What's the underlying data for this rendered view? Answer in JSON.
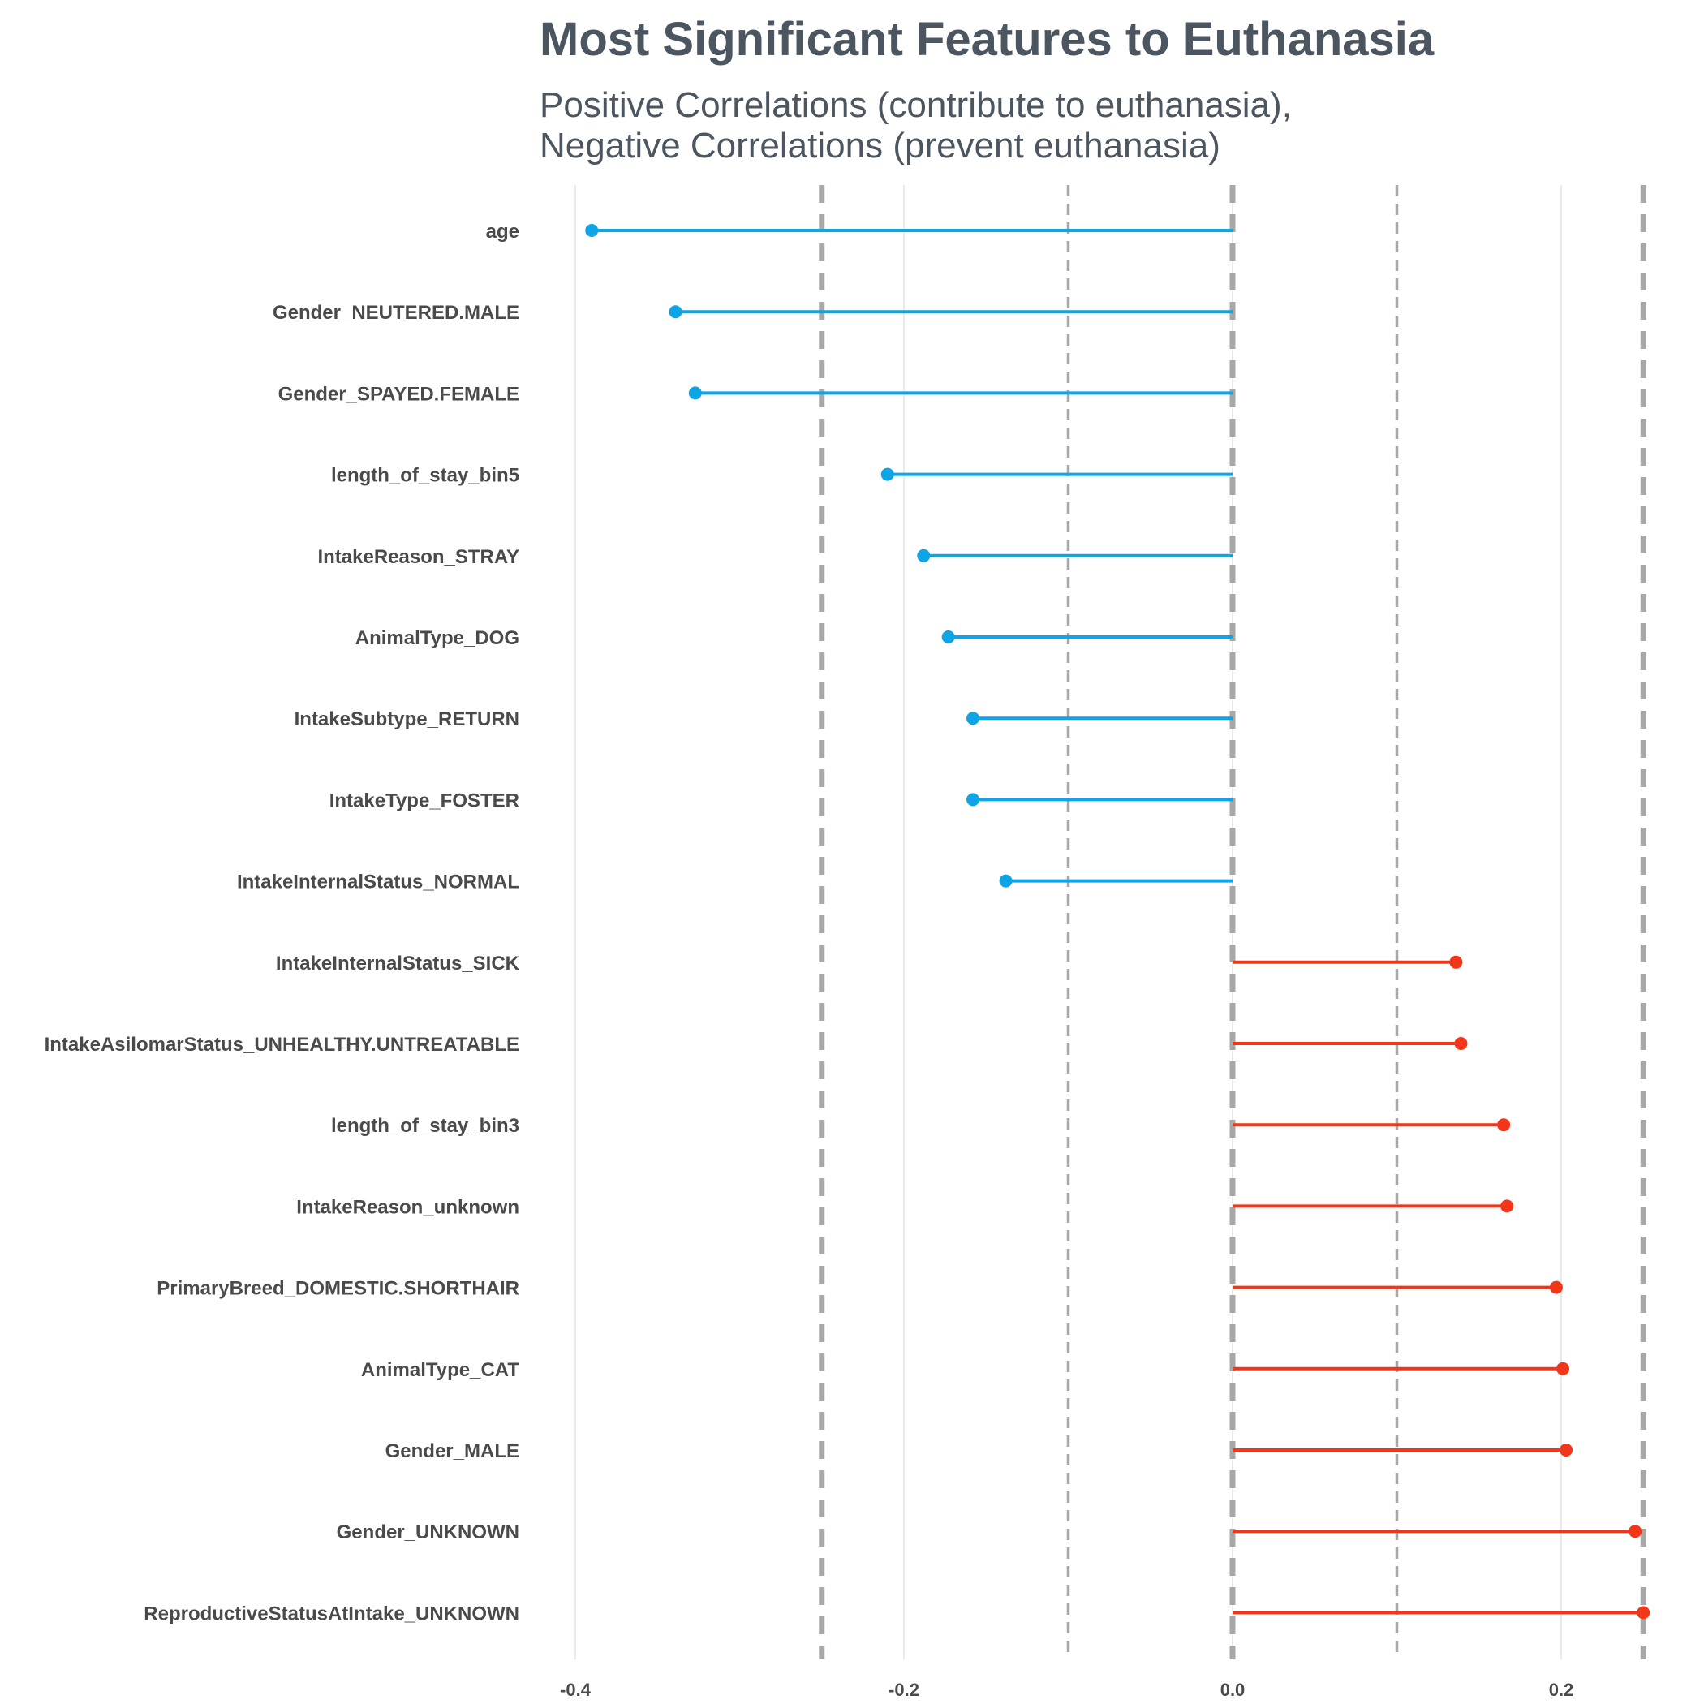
{
  "chart_data": {
    "type": "lollipop",
    "title": "Most Significant Features to Euthanasia",
    "subtitle_lines": [
      "Positive Correlations (contribute to euthanasia),",
      "Negative Correlations (prevent euthanasia)"
    ],
    "xlabel": "",
    "ylabel": "",
    "xlim": [
      -0.4,
      0.25
    ],
    "x_ticks": [
      -0.4,
      -0.2,
      0.0,
      0.2
    ],
    "x_tick_labels": [
      "-0.4",
      "-0.2",
      "0.0",
      "0.2"
    ],
    "reference_lines": [
      -0.25,
      -0.1,
      0.0,
      0.1,
      0.25
    ],
    "grid": "minimal",
    "colors": {
      "positive": "#f2361a",
      "negative": "#0fa4e6",
      "reference": "#a8a8a8",
      "gridline": "#ebebeb",
      "title": "#4b5660",
      "axis_text": "#4a4a4a"
    },
    "categories": [
      "age",
      "Gender_NEUTERED.MALE",
      "Gender_SPAYED.FEMALE",
      "length_of_stay_bin5",
      "IntakeReason_STRAY",
      "AnimalType_DOG",
      "IntakeSubtype_RETURN",
      "IntakeType_FOSTER",
      "IntakeInternalStatus_NORMAL",
      "IntakeInternalStatus_SICK",
      "IntakeAsilomarStatus_UNHEALTHY.UNTREATABLE",
      "length_of_stay_bin3",
      "IntakeReason_unknown",
      "PrimaryBreed_DOMESTIC.SHORTHAIR",
      "AnimalType_CAT",
      "Gender_MALE",
      "Gender_UNKNOWN",
      "ReproductiveStatusAtIntake_UNKNOWN"
    ],
    "values": [
      -0.39,
      -0.339,
      -0.327,
      -0.21,
      -0.188,
      -0.173,
      -0.158,
      -0.158,
      -0.138,
      0.136,
      0.139,
      0.165,
      0.167,
      0.197,
      0.201,
      0.203,
      0.245,
      0.25
    ]
  }
}
